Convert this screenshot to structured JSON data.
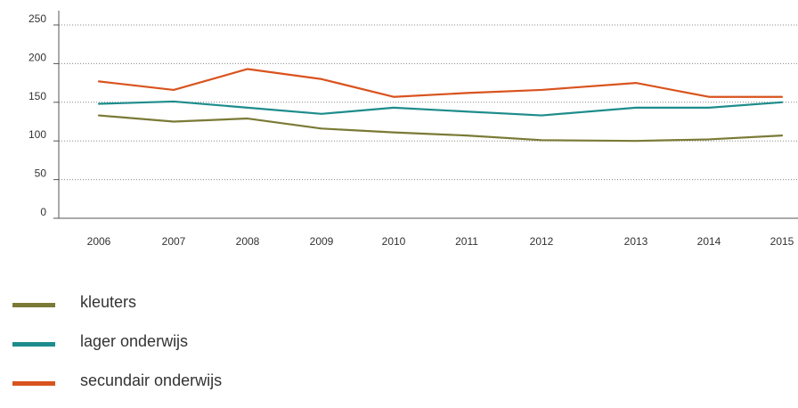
{
  "chart_data": {
    "type": "line",
    "title": "",
    "xlabel": "",
    "ylabel": "",
    "categories": [
      "2006",
      "2007",
      "2008",
      "2009",
      "2010",
      "2011",
      "2012",
      "2013",
      "2014",
      "2015"
    ],
    "ylim": [
      0,
      250
    ],
    "yticks": [
      0,
      50,
      100,
      150,
      200,
      250
    ],
    "grid": true,
    "legend_position": "bottom-left",
    "series": [
      {
        "name": "kleuters",
        "color": "#7a7a36",
        "values": [
          133,
          125,
          129,
          116,
          111,
          107,
          101,
          100,
          102,
          107
        ]
      },
      {
        "name": "lager onderwijs",
        "color": "#1e8c8c",
        "values": [
          148,
          151,
          143,
          135,
          143,
          138,
          133,
          143,
          143,
          150
        ]
      },
      {
        "name": "secundair onderwijs",
        "color": "#d9531e",
        "values": [
          177,
          166,
          193,
          180,
          157,
          162,
          166,
          175,
          157,
          157
        ]
      }
    ]
  }
}
